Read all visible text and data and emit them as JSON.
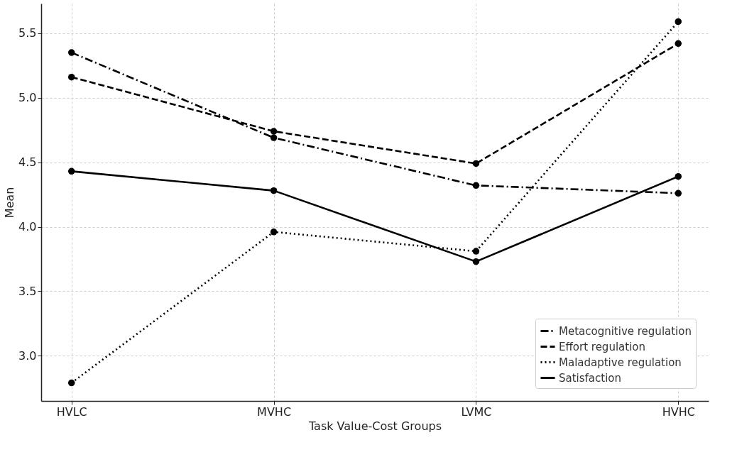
{
  "chart_data": {
    "type": "line",
    "xlabel": "Task Value-Cost Groups",
    "ylabel": "Mean",
    "categories": [
      "HVLC",
      "MVHC",
      "LVMC",
      "HVHC"
    ],
    "series": [
      {
        "name": "Metacognitive regulation",
        "color": "#000000",
        "line_style": "dashdot",
        "values": [
          5.35,
          4.69,
          4.32,
          4.26
        ]
      },
      {
        "name": "Effort regulation",
        "color": "#000000",
        "line_style": "dashed",
        "values": [
          5.16,
          4.74,
          4.49,
          5.42
        ]
      },
      {
        "name": "Maladaptive regulation",
        "color": "#000000",
        "line_style": "dotted",
        "values": [
          2.79,
          3.96,
          3.81,
          5.59
        ]
      },
      {
        "name": "Satisfaction",
        "color": "#000000",
        "line_style": "solid",
        "values": [
          4.43,
          4.28,
          3.73,
          4.39
        ]
      }
    ],
    "ylim": [
      2.65,
      5.73
    ],
    "yticks": [
      {
        "value": 3,
        "label": "3.0"
      },
      3.5,
      {
        "value": 4,
        "label": "4.0"
      },
      4.5,
      {
        "value": 5,
        "label": "5.0"
      },
      5.5
    ],
    "grid": true,
    "legend": "bottom right",
    "marker": "circle"
  }
}
